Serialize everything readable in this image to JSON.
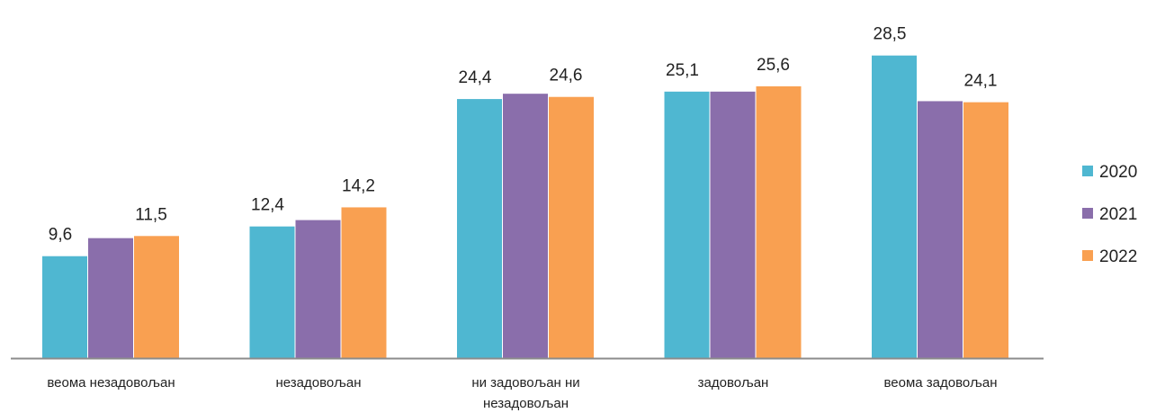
{
  "chart_data": {
    "type": "bar",
    "title": "",
    "xlabel": "",
    "ylabel": "",
    "ylim": [
      0,
      30
    ],
    "grid": false,
    "legend_position": "right",
    "categories": [
      [
        "веома незадовољан"
      ],
      [
        "незадовољан"
      ],
      [
        "ни задовољан ни",
        "незадовољан"
      ],
      [
        "задовољан"
      ],
      [
        "веома задовољан"
      ]
    ],
    "series": [
      {
        "name": "2020",
        "color": "#4fb7d1",
        "values": [
          9.6,
          12.4,
          24.4,
          25.1,
          28.5
        ]
      },
      {
        "name": "2021",
        "color": "#8a6eab",
        "values": [
          11.3,
          13.0,
          24.9,
          25.1,
          24.2
        ]
      },
      {
        "name": "2022",
        "color": "#f9a051",
        "values": [
          11.5,
          14.2,
          24.6,
          25.6,
          24.1
        ]
      }
    ],
    "data_labels": [
      {
        "category": 0,
        "series": 0,
        "text": "9,6"
      },
      {
        "category": 0,
        "series": 2,
        "text": "11,5"
      },
      {
        "category": 1,
        "series": 0,
        "text": "12,4"
      },
      {
        "category": 1,
        "series": 2,
        "text": "14,2"
      },
      {
        "category": 2,
        "series": 0,
        "text": "24,4"
      },
      {
        "category": 2,
        "series": 2,
        "text": "24,6"
      },
      {
        "category": 3,
        "series": 0,
        "text": "25,1"
      },
      {
        "category": 3,
        "series": 2,
        "text": "25,6"
      },
      {
        "category": 4,
        "series": 0,
        "text": "28,5"
      },
      {
        "category": 4,
        "series": 2,
        "text": "24,1"
      }
    ],
    "axis_color": "#8c8c8c"
  }
}
